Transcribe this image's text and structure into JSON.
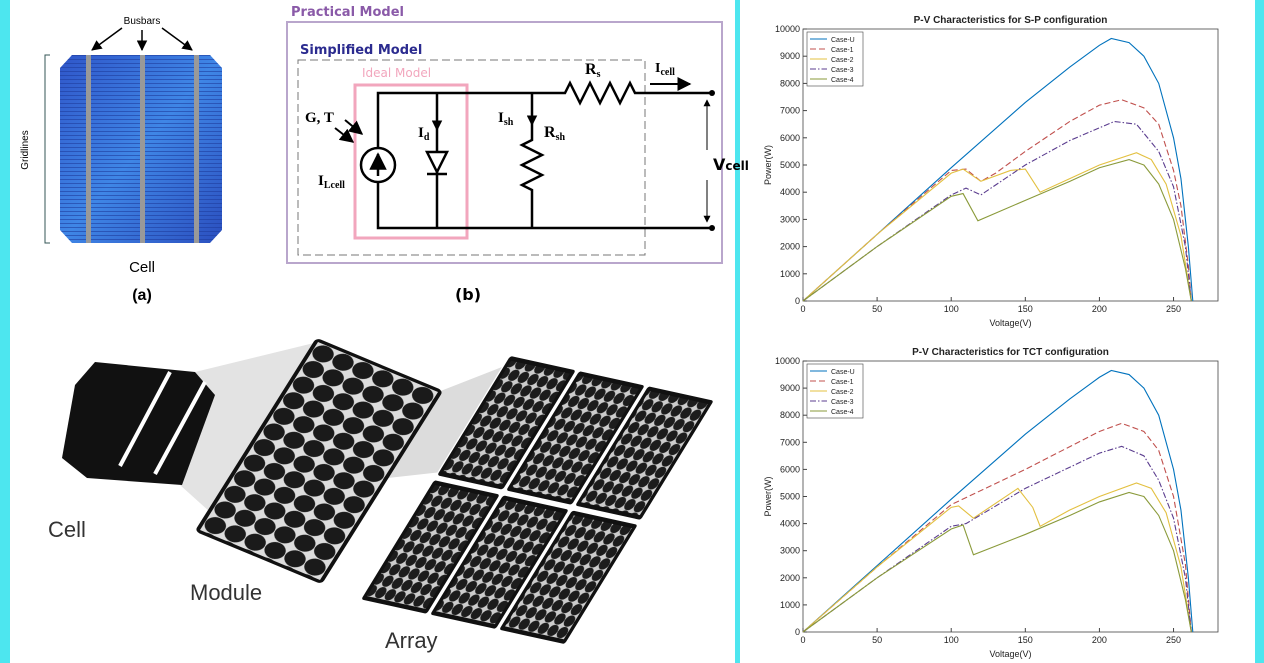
{
  "cell_figure": {
    "busbars": "Busbars",
    "gridlines": "Gridlines",
    "caption": "Cell",
    "label": "(a)"
  },
  "circuit_figure": {
    "practical": "Practical Model",
    "simplified": "Simplified Model",
    "ideal": "Ideal Model",
    "gt": "G, T",
    "i_lcell": {
      "main": "I",
      "sub": "Lcell"
    },
    "i_d": {
      "main": "I",
      "sub": "d"
    },
    "i_sh": {
      "main": "I",
      "sub": "sh"
    },
    "r_sh": {
      "main": "R",
      "sub": "sh"
    },
    "r_s": {
      "main": "R",
      "sub": "s"
    },
    "i_cell": {
      "main": "I",
      "sub": "cell"
    },
    "v_cell": {
      "main": "V",
      "sub": "cell"
    },
    "label": "(b)"
  },
  "hierarchy_figure": {
    "cell": "Cell",
    "module": "Module",
    "array": "Array"
  },
  "chart_data": [
    {
      "type": "line",
      "title": "P-V Characteristics for S-P configuration",
      "x_label": "Voltage(V)",
      "y_label": "Power(W)",
      "xlim": [
        0,
        280
      ],
      "xticks": [
        0,
        50,
        100,
        150,
        200,
        250
      ],
      "ylim": [
        0,
        10000
      ],
      "yticks": [
        0,
        1000,
        2000,
        3000,
        4000,
        5000,
        6000,
        7000,
        8000,
        9000,
        10000
      ],
      "legend": "top-left",
      "series": [
        {
          "name": "Case-U",
          "color": "#0072bd",
          "style": "solid",
          "x": [
            0,
            50,
            100,
            150,
            180,
            200,
            208,
            220,
            230,
            240,
            250,
            255,
            260,
            263
          ],
          "values": [
            0,
            2450,
            4900,
            7300,
            8600,
            9400,
            9650,
            9500,
            9000,
            8000,
            6000,
            4500,
            2000,
            0
          ]
        },
        {
          "name": "Case-1",
          "color": "#c0504d",
          "style": "dashed",
          "x": [
            0,
            50,
            100,
            110,
            120,
            130,
            150,
            180,
            200,
            215,
            230,
            240,
            250,
            255,
            260,
            262
          ],
          "values": [
            0,
            2450,
            4800,
            4850,
            4400,
            4700,
            5500,
            6600,
            7200,
            7400,
            7100,
            6500,
            4800,
            3500,
            1300,
            0
          ]
        },
        {
          "name": "Case-2",
          "color": "#e3c040",
          "style": "solid",
          "x": [
            0,
            50,
            100,
            108,
            120,
            140,
            150,
            160,
            180,
            200,
            225,
            235,
            245,
            255,
            262
          ],
          "values": [
            0,
            2450,
            4700,
            4850,
            4400,
            4800,
            4850,
            4000,
            4500,
            5000,
            5450,
            5200,
            4300,
            2400,
            0
          ]
        },
        {
          "name": "Case-3",
          "color": "#5b3d8f",
          "style": "dashdot",
          "x": [
            0,
            50,
            100,
            110,
            120,
            150,
            180,
            210,
            225,
            240,
            250,
            258,
            262
          ],
          "values": [
            0,
            2000,
            3900,
            4150,
            3900,
            5000,
            5900,
            6600,
            6500,
            5500,
            4200,
            2000,
            0
          ]
        },
        {
          "name": "Case-4",
          "color": "#8a9a3a",
          "style": "solid",
          "x": [
            0,
            50,
            100,
            108,
            118,
            150,
            180,
            200,
            220,
            230,
            240,
            250,
            258,
            262
          ],
          "values": [
            0,
            2000,
            3850,
            3950,
            2950,
            3700,
            4400,
            4900,
            5200,
            5000,
            4300,
            3000,
            1200,
            0
          ]
        }
      ]
    },
    {
      "type": "line",
      "title": "P-V Characteristics for TCT configuration",
      "x_label": "Voltage(V)",
      "y_label": "Power(W)",
      "xlim": [
        0,
        280
      ],
      "xticks": [
        0,
        50,
        100,
        150,
        200,
        250
      ],
      "ylim": [
        0,
        10000
      ],
      "yticks": [
        0,
        1000,
        2000,
        3000,
        4000,
        5000,
        6000,
        7000,
        8000,
        9000,
        10000
      ],
      "legend": "top-left",
      "series": [
        {
          "name": "Case-U",
          "color": "#0072bd",
          "style": "solid",
          "x": [
            0,
            50,
            100,
            150,
            180,
            200,
            208,
            220,
            230,
            240,
            250,
            255,
            260,
            263
          ],
          "values": [
            0,
            2450,
            4900,
            7300,
            8600,
            9400,
            9650,
            9500,
            9000,
            8000,
            6000,
            4500,
            2000,
            0
          ]
        },
        {
          "name": "Case-1",
          "color": "#c0504d",
          "style": "dashed",
          "x": [
            0,
            50,
            100,
            150,
            200,
            215,
            230,
            240,
            250,
            258,
            262
          ],
          "values": [
            0,
            2400,
            4700,
            6000,
            7400,
            7700,
            7400,
            6700,
            5000,
            2500,
            0
          ]
        },
        {
          "name": "Case-2",
          "color": "#e3c040",
          "style": "solid",
          "x": [
            0,
            50,
            100,
            105,
            115,
            145,
            155,
            160,
            180,
            200,
            225,
            235,
            245,
            255,
            262
          ],
          "values": [
            0,
            2400,
            4600,
            4650,
            4200,
            5300,
            4600,
            3900,
            4500,
            5000,
            5500,
            5300,
            4400,
            2400,
            0
          ]
        },
        {
          "name": "Case-3",
          "color": "#5b3d8f",
          "style": "dashdot",
          "x": [
            0,
            50,
            100,
            110,
            150,
            200,
            215,
            230,
            240,
            250,
            258,
            262
          ],
          "values": [
            0,
            2000,
            3900,
            4000,
            5300,
            6600,
            6850,
            6500,
            5600,
            4200,
            2000,
            0
          ]
        },
        {
          "name": "Case-4",
          "color": "#8a9a3a",
          "style": "solid",
          "x": [
            0,
            50,
            100,
            108,
            115,
            150,
            180,
            200,
            220,
            230,
            240,
            250,
            258,
            262
          ],
          "values": [
            0,
            2000,
            3800,
            3950,
            2850,
            3600,
            4300,
            4800,
            5150,
            5000,
            4300,
            3000,
            1200,
            0
          ]
        }
      ]
    }
  ]
}
